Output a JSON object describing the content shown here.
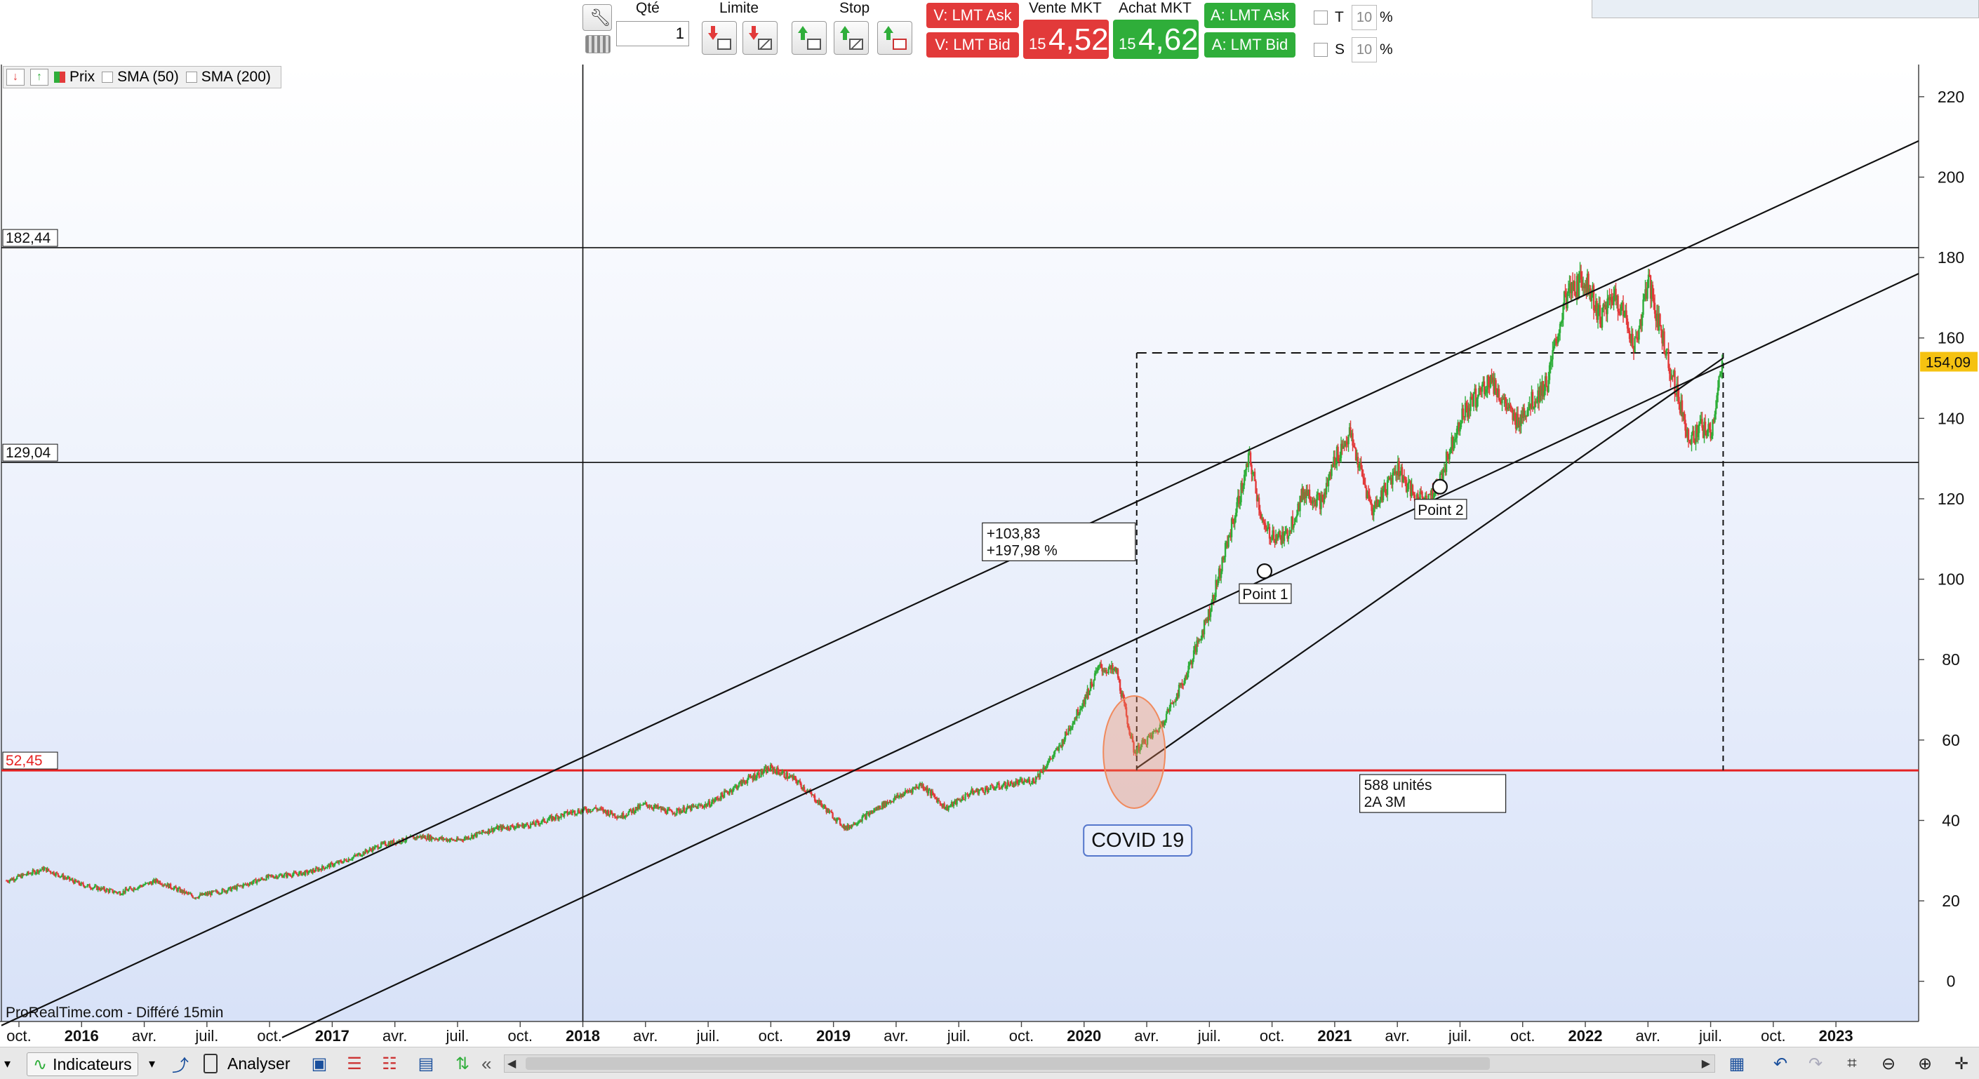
{
  "toolbar": {
    "qty_label": "Qté",
    "qty_value": "1",
    "limit_label": "Limite",
    "stop_label": "Stop",
    "v_lmt_ask": "V: LMT Ask",
    "v_lmt_bid": "V: LMT Bid",
    "vente_mkt_label": "Vente MKT",
    "achat_mkt_label": "Achat MKT",
    "vente_small": "15",
    "vente_big": "4,52",
    "achat_small": "15",
    "achat_big": "4,62",
    "a_lmt_ask": "A: LMT Ask",
    "a_lmt_bid": "A: LMT Bid",
    "t_label": "T",
    "t_value": "10",
    "s_label": "S",
    "s_value": "10",
    "pct": "%",
    "colors": {
      "sell": "#e23a3a",
      "buy": "#2fae3a"
    }
  },
  "legend": {
    "price": "Prix",
    "sma50": "SMA (50)",
    "sma200": "SMA (200)"
  },
  "chart_data": {
    "type": "candlestick",
    "y_range": [
      -10,
      228
    ],
    "y_ticks": [
      0,
      20,
      40,
      60,
      80,
      100,
      120,
      140,
      160,
      180,
      200,
      220
    ],
    "x_range": [
      2015.68,
      2023.33
    ],
    "x_ticks": [
      {
        "x": 2015.75,
        "label": "oct.",
        "bold": false
      },
      {
        "x": 2016.0,
        "label": "2016",
        "bold": true
      },
      {
        "x": 2016.25,
        "label": "avr.",
        "bold": false
      },
      {
        "x": 2016.5,
        "label": "juil.",
        "bold": false
      },
      {
        "x": 2016.75,
        "label": "oct.",
        "bold": false
      },
      {
        "x": 2017.0,
        "label": "2017",
        "bold": true
      },
      {
        "x": 2017.25,
        "label": "avr.",
        "bold": false
      },
      {
        "x": 2017.5,
        "label": "juil.",
        "bold": false
      },
      {
        "x": 2017.75,
        "label": "oct.",
        "bold": false
      },
      {
        "x": 2018.0,
        "label": "2018",
        "bold": true
      },
      {
        "x": 2018.25,
        "label": "avr.",
        "bold": false
      },
      {
        "x": 2018.5,
        "label": "juil.",
        "bold": false
      },
      {
        "x": 2018.75,
        "label": "oct.",
        "bold": false
      },
      {
        "x": 2019.0,
        "label": "2019",
        "bold": true
      },
      {
        "x": 2019.25,
        "label": "avr.",
        "bold": false
      },
      {
        "x": 2019.5,
        "label": "juil.",
        "bold": false
      },
      {
        "x": 2019.75,
        "label": "oct.",
        "bold": false
      },
      {
        "x": 2020.0,
        "label": "2020",
        "bold": true
      },
      {
        "x": 2020.25,
        "label": "avr.",
        "bold": false
      },
      {
        "x": 2020.5,
        "label": "juil.",
        "bold": false
      },
      {
        "x": 2020.75,
        "label": "oct.",
        "bold": false
      },
      {
        "x": 2021.0,
        "label": "2021",
        "bold": true
      },
      {
        "x": 2021.25,
        "label": "avr.",
        "bold": false
      },
      {
        "x": 2021.5,
        "label": "juil.",
        "bold": false
      },
      {
        "x": 2021.75,
        "label": "oct.",
        "bold": false
      },
      {
        "x": 2022.0,
        "label": "2022",
        "bold": true
      },
      {
        "x": 2022.25,
        "label": "avr.",
        "bold": false
      },
      {
        "x": 2022.5,
        "label": "juil.",
        "bold": false
      },
      {
        "x": 2022.75,
        "label": "oct.",
        "bold": false
      },
      {
        "x": 2023.0,
        "label": "2023",
        "bold": true
      }
    ],
    "series_anchors": [
      [
        2015.7,
        25
      ],
      [
        2015.85,
        28
      ],
      [
        2016.0,
        24
      ],
      [
        2016.15,
        22
      ],
      [
        2016.3,
        25
      ],
      [
        2016.45,
        21
      ],
      [
        2016.6,
        23
      ],
      [
        2016.75,
        26
      ],
      [
        2016.9,
        27
      ],
      [
        2017.05,
        30
      ],
      [
        2017.2,
        34
      ],
      [
        2017.35,
        36
      ],
      [
        2017.5,
        35
      ],
      [
        2017.65,
        38
      ],
      [
        2017.8,
        39
      ],
      [
        2017.95,
        42
      ],
      [
        2018.05,
        43
      ],
      [
        2018.15,
        41
      ],
      [
        2018.25,
        44
      ],
      [
        2018.35,
        42
      ],
      [
        2018.5,
        44
      ],
      [
        2018.65,
        50
      ],
      [
        2018.75,
        53
      ],
      [
        2018.85,
        50
      ],
      [
        2018.95,
        44
      ],
      [
        2019.05,
        38
      ],
      [
        2019.2,
        44
      ],
      [
        2019.35,
        49
      ],
      [
        2019.45,
        43
      ],
      [
        2019.55,
        47
      ],
      [
        2019.7,
        49
      ],
      [
        2019.8,
        50
      ],
      [
        2019.9,
        58
      ],
      [
        2020.0,
        70
      ],
      [
        2020.06,
        78
      ],
      [
        2020.13,
        77
      ],
      [
        2020.2,
        57
      ],
      [
        2020.3,
        63
      ],
      [
        2020.4,
        75
      ],
      [
        2020.5,
        92
      ],
      [
        2020.58,
        111
      ],
      [
        2020.66,
        130
      ],
      [
        2020.72,
        112
      ],
      [
        2020.8,
        110
      ],
      [
        2020.88,
        122
      ],
      [
        2020.95,
        119
      ],
      [
        2021.0,
        130
      ],
      [
        2021.06,
        136
      ],
      [
        2021.15,
        117
      ],
      [
        2021.25,
        128
      ],
      [
        2021.32,
        120
      ],
      [
        2021.4,
        121
      ],
      [
        2021.5,
        140
      ],
      [
        2021.62,
        150
      ],
      [
        2021.72,
        139
      ],
      [
        2021.85,
        149
      ],
      [
        2021.92,
        170
      ],
      [
        2022.0,
        175
      ],
      [
        2022.06,
        165
      ],
      [
        2022.12,
        171
      ],
      [
        2022.2,
        158
      ],
      [
        2022.25,
        174
      ],
      [
        2022.35,
        150
      ],
      [
        2022.42,
        134
      ],
      [
        2022.46,
        138
      ],
      [
        2022.5,
        136
      ],
      [
        2022.55,
        154.09
      ]
    ],
    "horizontal_lines": [
      {
        "value": 182.44,
        "label": "182,44",
        "color": "#111111"
      },
      {
        "value": 129.04,
        "label": "129,04",
        "color": "#111111"
      },
      {
        "value": 52.45,
        "label": "52,45",
        "color": "#e52222"
      }
    ],
    "last_price": {
      "value": 154.09,
      "label": "154,09",
      "color": "#f5c211"
    },
    "trend_lines": [
      {
        "from": [
          2015.68,
          -11
        ],
        "to": [
          2023.33,
          209
        ]
      },
      {
        "from": [
          2016.8,
          -14
        ],
        "to": [
          2023.33,
          176
        ]
      },
      {
        "from": [
          2020.21,
          53
        ],
        "to": [
          2022.55,
          155
        ]
      }
    ],
    "measure_box": {
      "x_start": 2020.21,
      "x_end": 2022.55,
      "y_low": 52.45,
      "y_high": 156.28,
      "label_top": [
        "+103,83",
        "+197,98 %"
      ],
      "label_bottom": [
        "588 unités",
        "2A 3M"
      ]
    },
    "points": [
      {
        "x": 2020.72,
        "y": 102,
        "label": "Point 1"
      },
      {
        "x": 2021.42,
        "y": 123,
        "label": "Point 2"
      }
    ],
    "annotation": {
      "x": 2020.2,
      "y": 57,
      "label": "COVID 19",
      "color": "#f08a5d"
    },
    "crosshair": {
      "x": 2018.0
    },
    "watermark": "ProRealTime.com - Différé 15min"
  },
  "bottombar": {
    "indicators": "Indicateurs",
    "analyse": "Analyser",
    "double_chevron": "«"
  }
}
